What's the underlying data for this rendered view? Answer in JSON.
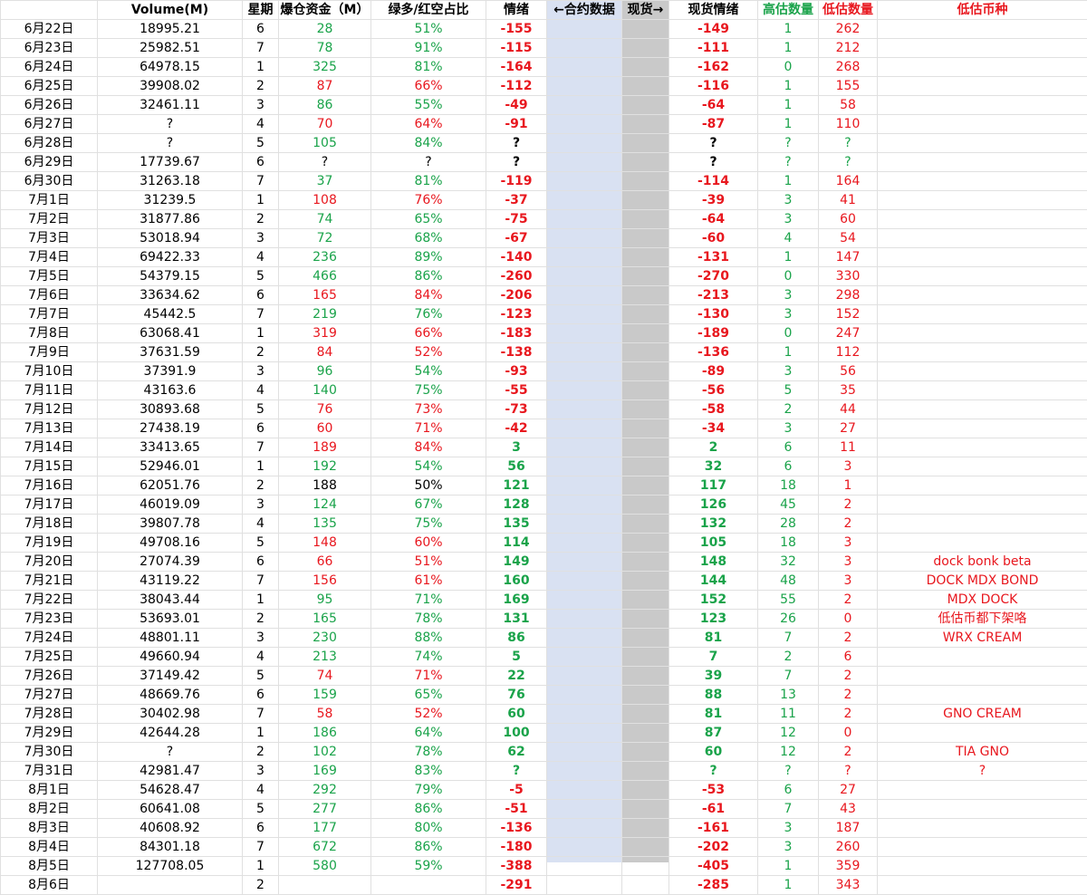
{
  "colors": {
    "green": "#1aa34a",
    "red": "#e8171e",
    "blue_band": "#d9e1f2",
    "gray_band": "#c9c9c9"
  },
  "headers": [
    "",
    "Volume(M)",
    "星期",
    "爆仓资金（M）",
    "绿多/红空占比",
    "情绪",
    "←合约数据",
    "现货→",
    "现货情绪",
    "高估数量",
    "低估数量",
    "低估币种"
  ],
  "header_colors": [
    "b",
    "b",
    "b",
    "b",
    "b",
    "b",
    "b",
    "b",
    "b",
    "g",
    "r",
    "r"
  ],
  "rows": [
    [
      "6月22日",
      "18995.21",
      "6",
      "28",
      "51%",
      "-155",
      "",
      "",
      "-149",
      "1",
      "262",
      ""
    ],
    [
      "6月23日",
      "25982.51",
      "7",
      "78",
      "91%",
      "-115",
      "",
      "",
      "-111",
      "1",
      "212",
      ""
    ],
    [
      "6月24日",
      "64978.15",
      "1",
      "325",
      "81%",
      "-164",
      "",
      "",
      "-162",
      "0",
      "268",
      ""
    ],
    [
      "6月25日",
      "39908.02",
      "2",
      "87",
      "66%",
      "-112",
      "",
      "",
      "-116",
      "1",
      "155",
      ""
    ],
    [
      "6月26日",
      "32461.11",
      "3",
      "86",
      "55%",
      "-49",
      "",
      "",
      "-64",
      "1",
      "58",
      ""
    ],
    [
      "6月27日",
      "?",
      "4",
      "70",
      "64%",
      "-91",
      "",
      "",
      "-87",
      "1",
      "110",
      ""
    ],
    [
      "6月28日",
      "?",
      "5",
      "105",
      "84%",
      "?",
      "",
      "",
      "?",
      "?",
      "?",
      ""
    ],
    [
      "6月29日",
      "17739.67",
      "6",
      "?",
      "?",
      "?",
      "",
      "",
      "?",
      "?",
      "?",
      ""
    ],
    [
      "6月30日",
      "31263.18",
      "7",
      "37",
      "81%",
      "-119",
      "",
      "",
      "-114",
      "1",
      "164",
      ""
    ],
    [
      "7月1日",
      "31239.5",
      "1",
      "108",
      "76%",
      "-37",
      "",
      "",
      "-39",
      "3",
      "41",
      ""
    ],
    [
      "7月2日",
      "31877.86",
      "2",
      "74",
      "65%",
      "-75",
      "",
      "",
      "-64",
      "3",
      "60",
      ""
    ],
    [
      "7月3日",
      "53018.94",
      "3",
      "72",
      "68%",
      "-67",
      "",
      "",
      "-60",
      "4",
      "54",
      ""
    ],
    [
      "7月4日",
      "69422.33",
      "4",
      "236",
      "89%",
      "-140",
      "",
      "",
      "-131",
      "1",
      "147",
      ""
    ],
    [
      "7月5日",
      "54379.15",
      "5",
      "466",
      "86%",
      "-260",
      "",
      "",
      "-270",
      "0",
      "330",
      ""
    ],
    [
      "7月6日",
      "33634.62",
      "6",
      "165",
      "84%",
      "-206",
      "",
      "",
      "-213",
      "3",
      "298",
      ""
    ],
    [
      "7月7日",
      "45442.5",
      "7",
      "219",
      "76%",
      "-123",
      "",
      "",
      "-130",
      "3",
      "152",
      ""
    ],
    [
      "7月8日",
      "63068.41",
      "1",
      "319",
      "66%",
      "-183",
      "",
      "",
      "-189",
      "0",
      "247",
      ""
    ],
    [
      "7月9日",
      "37631.59",
      "2",
      "84",
      "52%",
      "-138",
      "",
      "",
      "-136",
      "1",
      "112",
      ""
    ],
    [
      "7月10日",
      "37391.9",
      "3",
      "96",
      "54%",
      "-93",
      "",
      "",
      "-89",
      "3",
      "56",
      ""
    ],
    [
      "7月11日",
      "43163.6",
      "4",
      "140",
      "75%",
      "-55",
      "",
      "",
      "-56",
      "5",
      "35",
      ""
    ],
    [
      "7月12日",
      "30893.68",
      "5",
      "76",
      "73%",
      "-73",
      "",
      "",
      "-58",
      "2",
      "44",
      ""
    ],
    [
      "7月13日",
      "27438.19",
      "6",
      "60",
      "71%",
      "-42",
      "",
      "",
      "-34",
      "3",
      "27",
      ""
    ],
    [
      "7月14日",
      "33413.65",
      "7",
      "189",
      "84%",
      "3",
      "",
      "",
      "2",
      "6",
      "11",
      ""
    ],
    [
      "7月15日",
      "52946.01",
      "1",
      "192",
      "54%",
      "56",
      "",
      "",
      "32",
      "6",
      "3",
      ""
    ],
    [
      "7月16日",
      "62051.76",
      "2",
      "188",
      "50%",
      "121",
      "",
      "",
      "117",
      "18",
      "1",
      ""
    ],
    [
      "7月17日",
      "46019.09",
      "3",
      "124",
      "67%",
      "128",
      "",
      "",
      "126",
      "45",
      "2",
      ""
    ],
    [
      "7月18日",
      "39807.78",
      "4",
      "135",
      "75%",
      "135",
      "",
      "",
      "132",
      "28",
      "2",
      ""
    ],
    [
      "7月19日",
      "49708.16",
      "5",
      "148",
      "60%",
      "114",
      "",
      "",
      "105",
      "18",
      "3",
      ""
    ],
    [
      "7月20日",
      "27074.39",
      "6",
      "66",
      "51%",
      "149",
      "",
      "",
      "148",
      "32",
      "3",
      "dock bonk beta"
    ],
    [
      "7月21日",
      "43119.22",
      "7",
      "156",
      "61%",
      "160",
      "",
      "",
      "144",
      "48",
      "3",
      "DOCK MDX BOND"
    ],
    [
      "7月22日",
      "38043.44",
      "1",
      "95",
      "71%",
      "169",
      "",
      "",
      "152",
      "55",
      "2",
      "MDX DOCK"
    ],
    [
      "7月23日",
      "53693.01",
      "2",
      "165",
      "78%",
      "131",
      "",
      "",
      "123",
      "26",
      "0",
      "低估币都下架咯"
    ],
    [
      "7月24日",
      "48801.11",
      "3",
      "230",
      "88%",
      "86",
      "",
      "",
      "81",
      "7",
      "2",
      "WRX CREAM"
    ],
    [
      "7月25日",
      "49660.94",
      "4",
      "213",
      "74%",
      "5",
      "",
      "",
      "7",
      "2",
      "6",
      ""
    ],
    [
      "7月26日",
      "37149.42",
      "5",
      "74",
      "71%",
      "22",
      "",
      "",
      "39",
      "7",
      "2",
      ""
    ],
    [
      "7月27日",
      "48669.76",
      "6",
      "159",
      "65%",
      "76",
      "",
      "",
      "88",
      "13",
      "2",
      ""
    ],
    [
      "7月28日",
      "30402.98",
      "7",
      "58",
      "52%",
      "60",
      "",
      "",
      "81",
      "11",
      "2",
      "GNO CREAM"
    ],
    [
      "7月29日",
      "42644.28",
      "1",
      "186",
      "64%",
      "100",
      "",
      "",
      "87",
      "12",
      "0",
      ""
    ],
    [
      "7月30日",
      "?",
      "2",
      "102",
      "78%",
      "62",
      "",
      "",
      "60",
      "12",
      "2",
      "TIA GNO"
    ],
    [
      "7月31日",
      "42981.47",
      "3",
      "169",
      "83%",
      "?",
      "",
      "",
      "?",
      "?",
      "?",
      "?"
    ],
    [
      "8月1日",
      "54628.47",
      "4",
      "292",
      "79%",
      "-5",
      "",
      "",
      "-53",
      "6",
      "27",
      ""
    ],
    [
      "8月2日",
      "60641.08",
      "5",
      "277",
      "86%",
      "-51",
      "",
      "",
      "-61",
      "7",
      "43",
      ""
    ],
    [
      "8月3日",
      "40608.92",
      "6",
      "177",
      "80%",
      "-136",
      "",
      "",
      "-161",
      "3",
      "187",
      ""
    ],
    [
      "8月4日",
      "84301.18",
      "7",
      "672",
      "86%",
      "-180",
      "",
      "",
      "-202",
      "3",
      "260",
      ""
    ],
    [
      "8月5日",
      "127708.05",
      "1",
      "580",
      "59%",
      "-388",
      "",
      "",
      "-405",
      "1",
      "359",
      ""
    ],
    [
      "8月6日",
      "",
      "2",
      "",
      "",
      "-291",
      "",
      "",
      "-285",
      "1",
      "343",
      ""
    ]
  ],
  "row_colors": [
    "bbbggrrbrgrr",
    "bbbggrrbrgrr",
    "bbbggrrbrgrr",
    "bbbrrrrbrgrr",
    "bbbggrrbrgrr",
    "bbbrrrrbrgrr",
    "bbbggbbbbggr",
    "bbbbbbbbbggr",
    "bbbggrrbrgrr",
    "bbbrrrrbrgrr",
    "bbbggrrbrgrr",
    "bbbggrrbrgrr",
    "bbbggrrbrgrr",
    "bbbggrrbrgrr",
    "bbbrrrrbrgrr",
    "bbbggrrbrgrr",
    "bbbrrrrbrgrr",
    "bbbrrrrbrgrr",
    "bbbggrrbrgrr",
    "bbbggrrbrgrr",
    "bbbrrrrbrgrr",
    "bbbrrrrbrgrr",
    "bbbrrggbggrr",
    "bbbggggbggrr",
    "bbbbbggbggrr",
    "bbbggggbggrr",
    "bbbggggbggrr",
    "bbbrrggbggrr",
    "bbbrrggbggrr",
    "bbbrrggbggrr",
    "bbbggggbggrr",
    "bbbggggbggrr",
    "bbbggggbggrr",
    "bbbggggbggrr",
    "bbbrrggbggrr",
    "bbbggggbggrr",
    "bbbrrggbggrr",
    "bbbggggbggrr",
    "bbbggggbggrr",
    "bbbggggbggrr",
    "bbbggrrbrgrr",
    "bbbggrrbrgrr",
    "bbbggrrbrgrr",
    "bbbggrrbrgrr",
    "bbbggrrbrgrr",
    "bbbggrrbrgrr"
  ]
}
